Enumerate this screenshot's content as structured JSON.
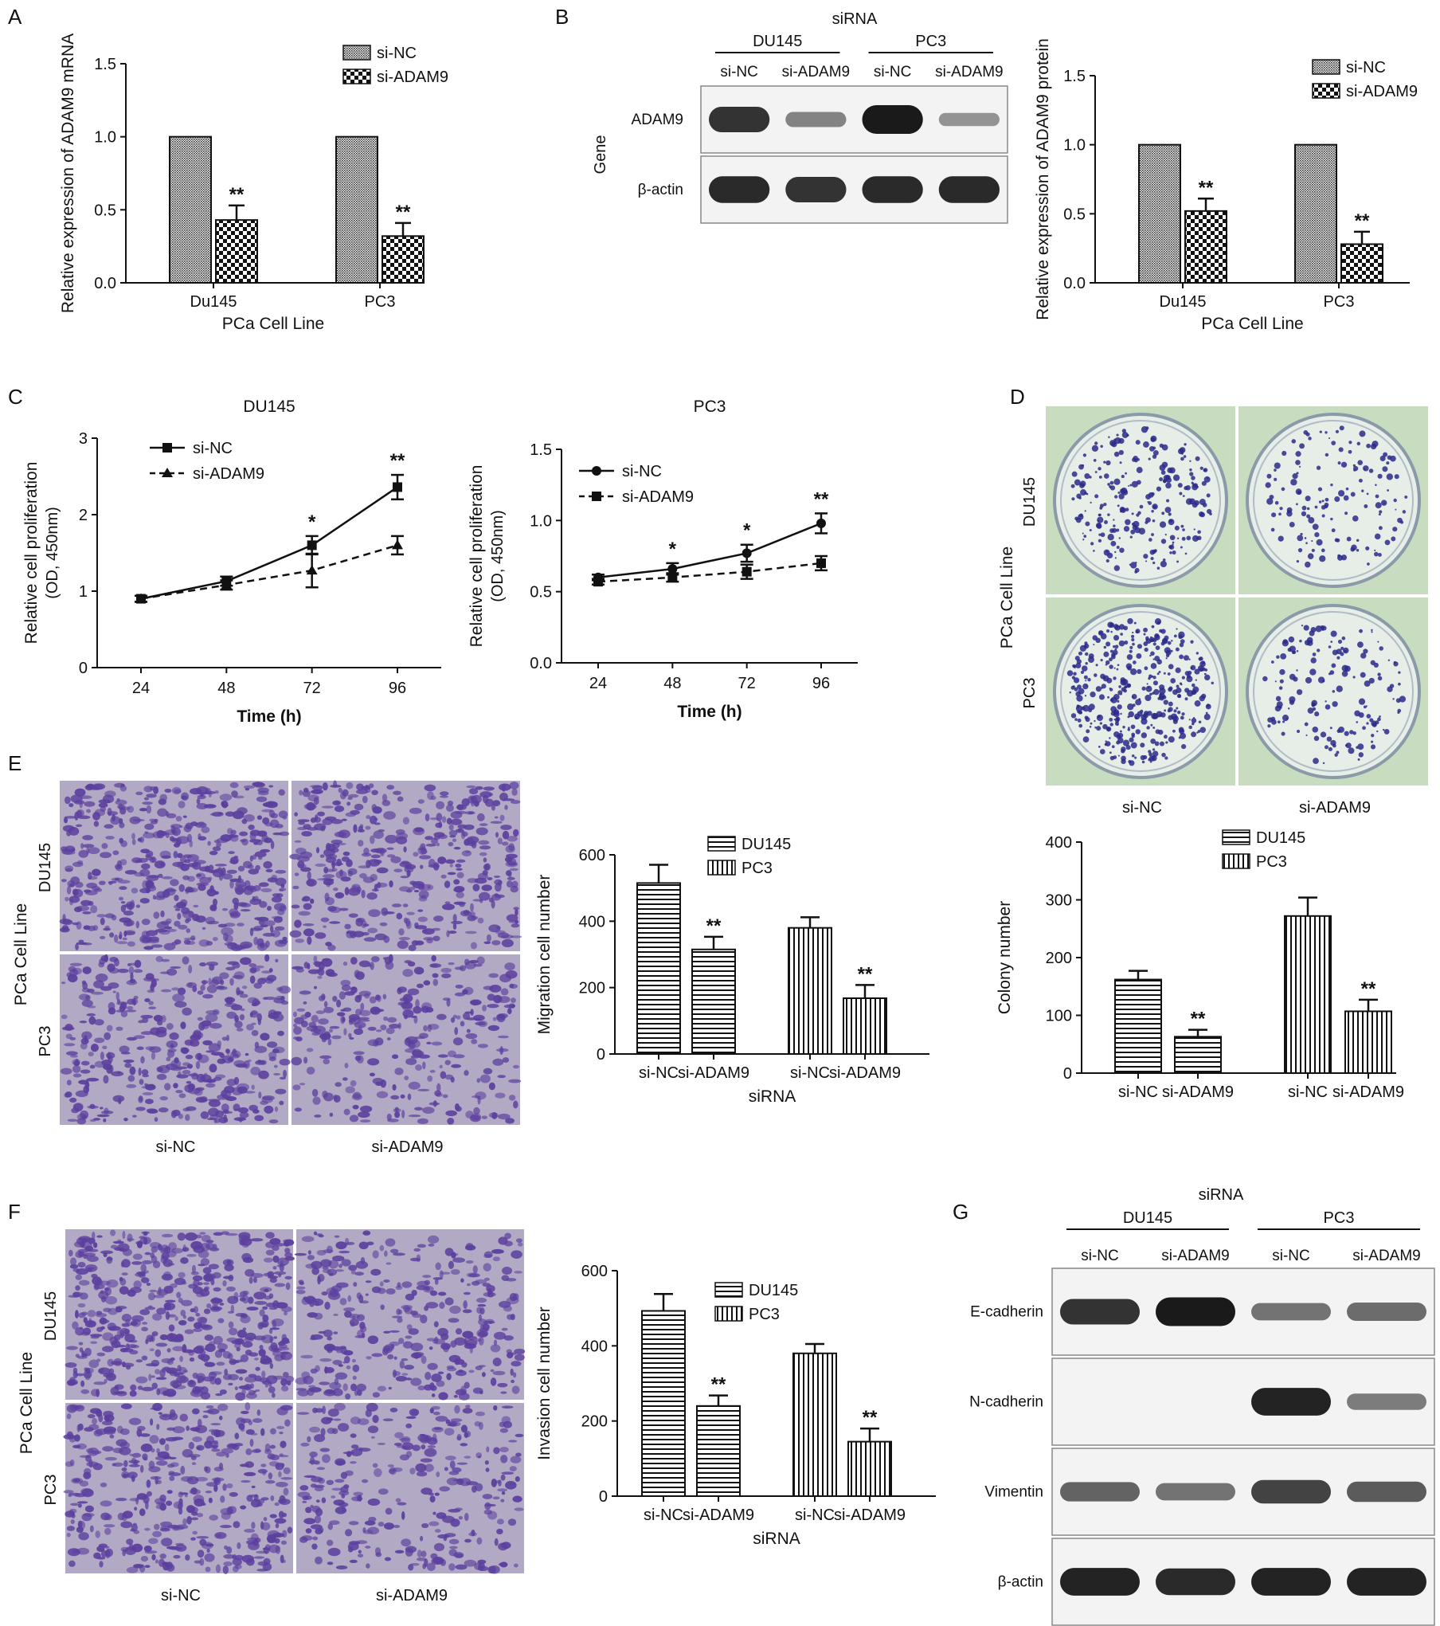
{
  "colors": {
    "axis": "#111111",
    "blot_bg": "#f3f3f3",
    "band": "#1a1a1a",
    "stain": "#5b3f9e",
    "plate_bg": "#c8dcc0",
    "plate_dish": "#e7eee8",
    "colony": "#2b2a8a"
  },
  "panel_labels": [
    "A",
    "B",
    "C",
    "D",
    "E",
    "F",
    "G"
  ],
  "blot_b": {
    "title": "siRNA",
    "groups": [
      "DU145",
      "PC3"
    ],
    "lanes": [
      "si-NC",
      "si-ADAM9",
      "si-NC",
      "si-ADAM9"
    ],
    "side_label": "Gene",
    "rows": [
      "ADAM9",
      "β-actin"
    ],
    "intensity": [
      [
        0.85,
        0.35,
        1.0,
        0.25
      ],
      [
        0.9,
        0.85,
        0.9,
        0.9
      ]
    ]
  },
  "blot_g": {
    "title": "siRNA",
    "groups": [
      "DU145",
      "PC3"
    ],
    "lanes": [
      "si-NC",
      "si-ADAM9",
      "si-NC",
      "si-ADAM9"
    ],
    "rows": [
      "E-cadherin",
      "N-cadherin",
      "Vimentin",
      "β-actin"
    ],
    "intensity": [
      [
        0.85,
        1.0,
        0.45,
        0.5
      ],
      [
        0.0,
        0.0,
        0.95,
        0.4
      ],
      [
        0.55,
        0.45,
        0.75,
        0.6
      ],
      [
        0.95,
        0.9,
        0.95,
        0.95
      ]
    ]
  },
  "plates_d": {
    "row_labels": [
      "DU145",
      "PC3"
    ],
    "col_labels": [
      "si-NC",
      "si-ADAM9"
    ],
    "side_label": "PCa Cell Line",
    "colony_density": [
      [
        0.55,
        0.25
      ],
      [
        1.0,
        0.3
      ]
    ]
  },
  "micro_e": {
    "row_labels": [
      "DU145",
      "PC3"
    ],
    "col_labels": [
      "si-NC",
      "si-ADAM9"
    ],
    "side_label": "PCa Cell Line",
    "stain_density": [
      [
        0.75,
        0.6
      ],
      [
        0.6,
        0.4
      ]
    ]
  },
  "micro_f": {
    "row_labels": [
      "DU145",
      "PC3"
    ],
    "col_labels": [
      "si-NC",
      "si-ADAM9"
    ],
    "side_label": "PCa Cell Line",
    "stain_density": [
      [
        0.85,
        0.45
      ],
      [
        0.6,
        0.35
      ]
    ]
  },
  "chart_data": [
    {
      "id": "A",
      "type": "bar",
      "categories": [
        "Du145",
        "PC3"
      ],
      "series": [
        {
          "name": "si-NC",
          "values": [
            1.0,
            1.0
          ],
          "errors": [
            0,
            0
          ],
          "pattern": "dense"
        },
        {
          "name": "si-ADAM9",
          "values": [
            0.43,
            0.32
          ],
          "errors": [
            0.1,
            0.09
          ],
          "pattern": "check"
        }
      ],
      "significance": [
        [
          "",
          "**"
        ],
        [
          "",
          "**"
        ]
      ],
      "xlabel": "PCa Cell Line",
      "ylabel": "Relative expression of ADAM9 mRNA",
      "ylim": [
        0,
        1.5
      ],
      "yticks": [
        "0.0",
        "0.5",
        "1.0",
        "1.5"
      ],
      "legend": "top-right"
    },
    {
      "id": "B",
      "type": "bar",
      "categories": [
        "Du145",
        "PC3"
      ],
      "series": [
        {
          "name": "si-NC",
          "values": [
            1.0,
            1.0
          ],
          "errors": [
            0,
            0
          ],
          "pattern": "dense"
        },
        {
          "name": "si-ADAM9",
          "values": [
            0.52,
            0.28
          ],
          "errors": [
            0.09,
            0.09
          ],
          "pattern": "check"
        }
      ],
      "significance": [
        [
          "",
          "**"
        ],
        [
          "",
          "**"
        ]
      ],
      "xlabel": "PCa Cell Line",
      "ylabel": "Relative expression of ADAM9 protein",
      "ylim": [
        0,
        1.5
      ],
      "yticks": [
        "0.0",
        "0.5",
        "1.0",
        "1.5"
      ],
      "legend": "top-right"
    },
    {
      "id": "C1",
      "type": "line",
      "title": "DU145",
      "x": [
        24,
        48,
        72,
        96
      ],
      "xticks": [
        "24",
        "48",
        "72",
        "96"
      ],
      "series": [
        {
          "name": "si-NC",
          "values": [
            0.9,
            1.13,
            1.6,
            2.36
          ],
          "errors": [
            0.04,
            0.06,
            0.12,
            0.16
          ],
          "marker": "square",
          "dash": "solid"
        },
        {
          "name": "si-ADAM9",
          "values": [
            0.9,
            1.08,
            1.27,
            1.6
          ],
          "errors": [
            0.04,
            0.06,
            0.22,
            0.12
          ],
          "marker": "triangle",
          "dash": "dashed"
        }
      ],
      "significance": [
        "",
        "",
        "*",
        "**"
      ],
      "xlabel": "Time (h)",
      "ylabel": [
        "Relative cell proliferation",
        "(OD, 450nm)"
      ],
      "ylim": [
        0,
        3
      ],
      "yticks": [
        "0",
        "1",
        "2",
        "3"
      ],
      "legend": "top-left"
    },
    {
      "id": "C2",
      "type": "line",
      "title": "PC3",
      "x": [
        24,
        48,
        72,
        96
      ],
      "xticks": [
        "24",
        "48",
        "72",
        "96"
      ],
      "series": [
        {
          "name": "si-NC",
          "values": [
            0.6,
            0.66,
            0.77,
            0.98
          ],
          "errors": [
            0.02,
            0.04,
            0.06,
            0.07
          ],
          "marker": "circle",
          "dash": "solid"
        },
        {
          "name": "si-ADAM9",
          "values": [
            0.57,
            0.6,
            0.64,
            0.7
          ],
          "errors": [
            0.02,
            0.03,
            0.05,
            0.05
          ],
          "marker": "square",
          "dash": "dashed"
        }
      ],
      "significance": [
        "",
        "*",
        "*",
        "**"
      ],
      "xlabel": "Time (h)",
      "ylabel": [
        "Relative cell proliferation",
        "(OD, 450nm)"
      ],
      "ylim": [
        0,
        1.5
      ],
      "yticks": [
        "0.0",
        "0.5",
        "1.0",
        "1.5"
      ],
      "legend": "top-left"
    },
    {
      "id": "D",
      "type": "bar",
      "series": [
        {
          "name": "DU145",
          "pattern": "horizontal"
        },
        {
          "name": "PC3",
          "pattern": "vertical"
        }
      ],
      "bars": [
        {
          "label": "si-NC",
          "value": 162,
          "error": 15,
          "pattern": "horizontal",
          "sig": ""
        },
        {
          "label": "si-ADAM9",
          "value": 63,
          "error": 12,
          "pattern": "horizontal",
          "sig": "**"
        },
        {
          "label": "si-NC",
          "value": 272,
          "error": 32,
          "pattern": "vertical",
          "sig": ""
        },
        {
          "label": "si-ADAM9",
          "value": 107,
          "error": 20,
          "pattern": "vertical",
          "sig": "**"
        }
      ],
      "ylabel": "Colony number",
      "ylim": [
        0,
        400
      ],
      "yticks": [
        "0",
        "100",
        "200",
        "300",
        "400"
      ],
      "legend": "top-center"
    },
    {
      "id": "E",
      "type": "bar",
      "series": [
        {
          "name": "DU145",
          "pattern": "horizontal"
        },
        {
          "name": "PC3",
          "pattern": "vertical"
        }
      ],
      "bars": [
        {
          "label": "si-NC",
          "value": 515,
          "error": 55,
          "pattern": "horizontal",
          "sig": ""
        },
        {
          "label": "si-ADAM9",
          "value": 315,
          "error": 38,
          "pattern": "horizontal",
          "sig": "**"
        },
        {
          "label": "si-NC",
          "value": 380,
          "error": 32,
          "pattern": "vertical",
          "sig": ""
        },
        {
          "label": "si-ADAM9",
          "value": 168,
          "error": 40,
          "pattern": "vertical",
          "sig": "**"
        }
      ],
      "xlabel": "siRNA",
      "ylabel": "Migration cell number",
      "ylim": [
        0,
        600
      ],
      "yticks": [
        "0",
        "200",
        "400",
        "600"
      ],
      "legend": "top-center"
    },
    {
      "id": "F",
      "type": "bar",
      "series": [
        {
          "name": "DU145",
          "pattern": "horizontal"
        },
        {
          "name": "PC3",
          "pattern": "vertical"
        }
      ],
      "bars": [
        {
          "label": "si-NC",
          "value": 493,
          "error": 45,
          "pattern": "horizontal",
          "sig": ""
        },
        {
          "label": "si-ADAM9",
          "value": 240,
          "error": 28,
          "pattern": "horizontal",
          "sig": "**"
        },
        {
          "label": "si-NC",
          "value": 380,
          "error": 25,
          "pattern": "vertical",
          "sig": ""
        },
        {
          "label": "si-ADAM9",
          "value": 145,
          "error": 35,
          "pattern": "vertical",
          "sig": "**"
        }
      ],
      "xlabel": "siRNA",
      "ylabel": "Invasion cell number",
      "ylim": [
        0,
        600
      ],
      "yticks": [
        "0",
        "200",
        "400",
        "600"
      ],
      "legend": "top-center"
    }
  ]
}
